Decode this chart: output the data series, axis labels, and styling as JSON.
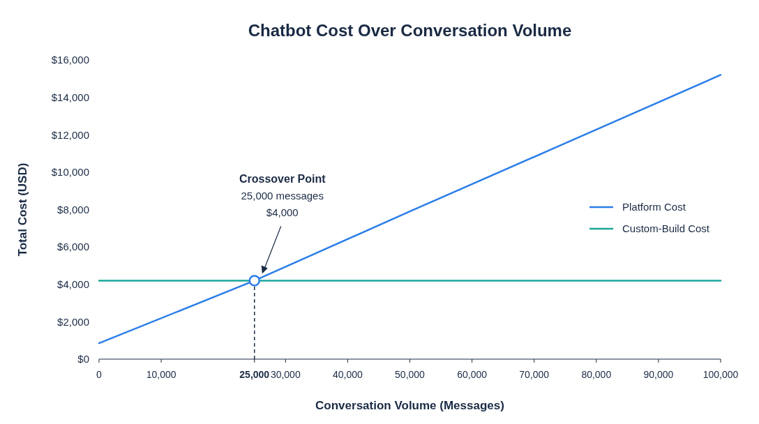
{
  "chart_data": {
    "type": "line",
    "title": "Chatbot Cost Over Conversation Volume",
    "xlabel": "Conversation Volume (Messages)",
    "ylabel": "Total Cost (USD)",
    "xlim": [
      0,
      100000
    ],
    "xticks": [
      {
        "value": 0,
        "label": "0"
      },
      {
        "value": 10000,
        "label": "10,000"
      },
      {
        "value": 25000,
        "label": "25,000"
      },
      {
        "value": 30000,
        "label": "30,000"
      },
      {
        "value": 40000,
        "label": "40,000"
      },
      {
        "value": 50000,
        "label": "50,000"
      },
      {
        "value": 60000,
        "label": "60,000"
      },
      {
        "value": 70000,
        "label": "70,000"
      },
      {
        "value": 80000,
        "label": "80,000"
      },
      {
        "value": 90000,
        "label": "90,000"
      },
      {
        "value": 100000,
        "label": "100,000"
      }
    ],
    "ylim": [
      0,
      16000
    ],
    "yticks": [
      {
        "value": 0,
        "label": "$0"
      },
      {
        "value": 2000,
        "label": "$2,000"
      },
      {
        "value": 4000,
        "label": "$4,000"
      },
      {
        "value": 6000,
        "label": "$6,000"
      },
      {
        "value": 8000,
        "label": "$8,000"
      },
      {
        "value": 10000,
        "label": "$10,000"
      },
      {
        "value": 12000,
        "label": "$12,000"
      },
      {
        "value": 14000,
        "label": "$14,000"
      },
      {
        "value": 16000,
        "label": "$16,000"
      }
    ],
    "grid": false,
    "legend": "right",
    "series": [
      {
        "name": "Platform Cost",
        "color": "#2b7de9",
        "x": [
          0,
          25000,
          50000,
          75000,
          100000
        ],
        "values": [
          850,
          4200,
          7900,
          11550,
          15200
        ]
      },
      {
        "name": "Custom-Build Cost",
        "color": "#1aa89a",
        "x": [
          0,
          100000
        ],
        "values": [
          4200,
          4200
        ]
      },
      {
        "type": "scatter",
        "marker": "circle",
        "color": "#2b7de9",
        "x": [
          25000
        ],
        "values": [
          4200
        ]
      }
    ],
    "ref_lines": [
      {
        "axis": "x",
        "value": 25000,
        "line_style": "dashed",
        "color": "#1a2a44"
      }
    ],
    "annotations": [
      "Crossover Point\n25,000 messages\n$4,000"
    ]
  }
}
